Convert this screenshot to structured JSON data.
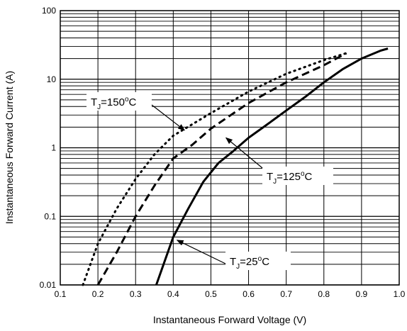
{
  "chart_data": {
    "type": "line",
    "xlabel": "Instantaneous Forward Voltage (V)",
    "ylabel": "Instantaneous Forward Current (A)",
    "xlim": [
      0.1,
      1.0
    ],
    "ylim": [
      0.01,
      100
    ],
    "y_scale": "log",
    "x_ticks": [
      "0.1",
      "0.2",
      "0.3",
      "0.4",
      "0.5",
      "0.6",
      "0.7",
      "0.8",
      "0.9",
      "1.0"
    ],
    "y_ticks": [
      "0.01",
      "0.1",
      "1",
      "10",
      "100"
    ],
    "grid": true,
    "series": [
      {
        "label_prefix": "T",
        "label_sub": "J",
        "label_value": "=150",
        "label_unit": "C",
        "style": "dotted",
        "points": [
          [
            0.16,
            0.01
          ],
          [
            0.2,
            0.04
          ],
          [
            0.25,
            0.13
          ],
          [
            0.3,
            0.35
          ],
          [
            0.35,
            0.8
          ],
          [
            0.4,
            1.5
          ],
          [
            0.5,
            3.2
          ],
          [
            0.6,
            6.6
          ],
          [
            0.7,
            12
          ],
          [
            0.8,
            19
          ],
          [
            0.86,
            24
          ]
        ]
      },
      {
        "label_prefix": "T",
        "label_sub": "J",
        "label_value": "=125",
        "label_unit": "C",
        "style": "dashed",
        "points": [
          [
            0.2,
            0.01
          ],
          [
            0.25,
            0.03
          ],
          [
            0.3,
            0.1
          ],
          [
            0.35,
            0.28
          ],
          [
            0.4,
            0.7
          ],
          [
            0.45,
            1.1
          ],
          [
            0.5,
            1.9
          ],
          [
            0.6,
            4.5
          ],
          [
            0.7,
            9
          ],
          [
            0.8,
            16
          ],
          [
            0.86,
            24
          ]
        ]
      },
      {
        "label_prefix": "T",
        "label_sub": "J",
        "label_value": "=25",
        "label_unit": "C",
        "style": "solid",
        "points": [
          [
            0.355,
            0.01
          ],
          [
            0.4,
            0.05
          ],
          [
            0.44,
            0.13
          ],
          [
            0.48,
            0.32
          ],
          [
            0.52,
            0.6
          ],
          [
            0.56,
            0.9
          ],
          [
            0.6,
            1.4
          ],
          [
            0.65,
            2.2
          ],
          [
            0.7,
            3.5
          ],
          [
            0.75,
            5.5
          ],
          [
            0.8,
            9
          ],
          [
            0.85,
            14
          ],
          [
            0.9,
            20
          ],
          [
            0.95,
            26
          ],
          [
            0.97,
            28
          ]
        ]
      }
    ],
    "annotations": [
      {
        "series": 0,
        "at": [
          0.43,
          1.8
        ]
      },
      {
        "series": 1,
        "at": [
          0.54,
          1.4
        ]
      },
      {
        "series": 2,
        "at": [
          0.41,
          0.045
        ]
      }
    ]
  }
}
